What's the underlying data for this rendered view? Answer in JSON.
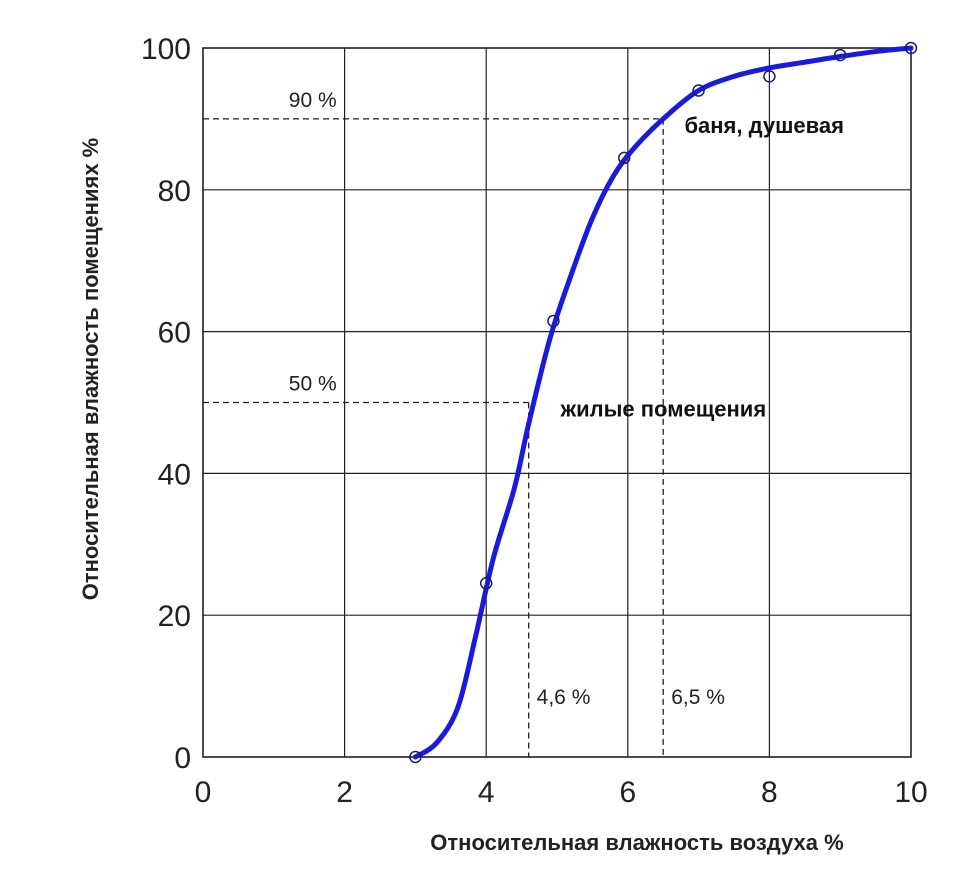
{
  "chart_data": {
    "type": "line",
    "title": "",
    "xlabel": "Относительная влажность воздуха %",
    "ylabel": "Относительная влажность помещениях %",
    "xlim": [
      0,
      10
    ],
    "ylim": [
      0,
      100
    ],
    "x_ticks": [
      0,
      2,
      4,
      6,
      8,
      10
    ],
    "y_ticks": [
      0,
      20,
      40,
      60,
      80,
      100
    ],
    "grid": true,
    "color": "#1a1adc",
    "points": [
      {
        "x": 3.0,
        "y": 0
      },
      {
        "x": 4.0,
        "y": 24.5
      },
      {
        "x": 4.95,
        "y": 61.5
      },
      {
        "x": 5.95,
        "y": 84.5
      },
      {
        "x": 7.0,
        "y": 94
      },
      {
        "x": 8.0,
        "y": 96
      },
      {
        "x": 9.0,
        "y": 99
      },
      {
        "x": 10.0,
        "y": 100
      }
    ],
    "curve": [
      {
        "x": 3.0,
        "y": 0
      },
      {
        "x": 3.3,
        "y": 2
      },
      {
        "x": 3.6,
        "y": 7
      },
      {
        "x": 3.85,
        "y": 17
      },
      {
        "x": 4.1,
        "y": 28
      },
      {
        "x": 4.4,
        "y": 38
      },
      {
        "x": 4.6,
        "y": 47
      },
      {
        "x": 4.9,
        "y": 59
      },
      {
        "x": 5.2,
        "y": 68
      },
      {
        "x": 5.5,
        "y": 76
      },
      {
        "x": 5.8,
        "y": 82
      },
      {
        "x": 6.1,
        "y": 86
      },
      {
        "x": 6.5,
        "y": 90
      },
      {
        "x": 7.0,
        "y": 94
      },
      {
        "x": 7.5,
        "y": 96
      },
      {
        "x": 8.0,
        "y": 97.2
      },
      {
        "x": 8.5,
        "y": 98
      },
      {
        "x": 9.0,
        "y": 98.8
      },
      {
        "x": 9.5,
        "y": 99.5
      },
      {
        "x": 10.0,
        "y": 100
      }
    ],
    "reference_lines": [
      {
        "y": 90,
        "x": 6.5,
        "y_label": "90 %",
        "x_label": "6,5 %"
      },
      {
        "y": 50,
        "x": 4.6,
        "y_label": "50 %",
        "x_label": "4,6 %"
      }
    ],
    "annotations": [
      {
        "text": "баня, душевая",
        "x": 6.8,
        "y": 88
      },
      {
        "text": "жилые помещения",
        "x": 5.05,
        "y": 48
      }
    ]
  }
}
